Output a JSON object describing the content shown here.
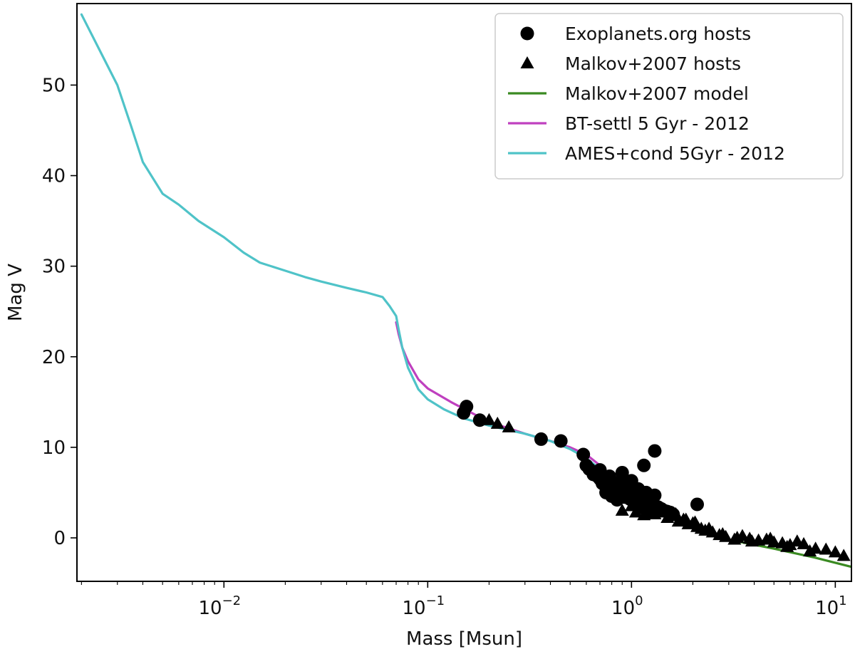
{
  "chart_data": {
    "type": "scatter",
    "title": "",
    "xlabel": "Mass [Msun]",
    "ylabel": "Mag V",
    "xscale": "log",
    "xlim": [
      0.0019,
      12
    ],
    "ylim": [
      -4.8,
      59
    ],
    "grid": false,
    "legend_position": "top-right",
    "x_ticks": [
      {
        "value": 0.01,
        "base": "10",
        "exp": "−2"
      },
      {
        "value": 0.1,
        "base": "10",
        "exp": "−1"
      },
      {
        "value": 1,
        "base": "10",
        "exp": "0"
      },
      {
        "value": 10,
        "base": "10",
        "exp": "1"
      }
    ],
    "y_ticks": [
      0,
      10,
      20,
      30,
      40,
      50
    ],
    "legend": [
      {
        "label": "Exoplanets.org hosts",
        "kind": "circle",
        "color": "#000000"
      },
      {
        "label": "Malkov+2007 hosts",
        "kind": "triangle",
        "color": "#000000"
      },
      {
        "label": "Malkov+2007 model",
        "kind": "line",
        "color": "#3a8a22"
      },
      {
        "label": "BT-settl 5 Gyr - 2012",
        "kind": "line",
        "color": "#bf40bf"
      },
      {
        "label": "AMES+cond 5Gyr - 2012",
        "kind": "line",
        "color": "#4fc3c8"
      }
    ],
    "series": [
      {
        "name": "Exoplanets.org hosts",
        "type": "scatter",
        "marker": "circle",
        "color": "#000000",
        "x": [
          0.15,
          0.155,
          0.18,
          0.36,
          0.45,
          0.58,
          0.6,
          0.62,
          0.65,
          0.68,
          0.7,
          0.72,
          0.75,
          0.78,
          0.8,
          0.82,
          0.85,
          0.88,
          0.9,
          0.92,
          0.95,
          0.98,
          1.0,
          1.02,
          1.05,
          1.08,
          1.1,
          1.12,
          1.15,
          1.18,
          1.2,
          1.25,
          1.28,
          1.3,
          1.35,
          1.4,
          1.45,
          1.5,
          1.55,
          1.6,
          0.75,
          0.8,
          0.85,
          0.9,
          0.95,
          1.0,
          1.05,
          1.1,
          1.15,
          1.2,
          0.7,
          0.78,
          0.88,
          0.98,
          1.08,
          1.18,
          1.3,
          1.15,
          1.3,
          2.1,
          0.9,
          1.0,
          1.2
        ],
        "y": [
          13.8,
          14.5,
          13.0,
          10.9,
          10.7,
          9.2,
          8.0,
          7.6,
          7.0,
          6.8,
          6.5,
          6.0,
          5.8,
          6.2,
          5.5,
          5.0,
          5.3,
          4.8,
          4.9,
          4.5,
          4.6,
          4.3,
          4.4,
          4.0,
          4.2,
          3.8,
          3.9,
          3.6,
          3.7,
          3.5,
          3.4,
          3.3,
          3.5,
          3.0,
          3.4,
          3.2,
          3.0,
          2.9,
          2.8,
          2.6,
          5.0,
          4.6,
          4.2,
          5.6,
          5.4,
          5.8,
          5.2,
          5.0,
          4.8,
          4.6,
          7.5,
          6.8,
          6.2,
          5.9,
          5.4,
          5.0,
          4.7,
          8.0,
          9.6,
          3.7,
          7.2,
          6.3,
          2.8
        ]
      },
      {
        "name": "Malkov+2007 hosts",
        "type": "scatter",
        "marker": "triangle",
        "color": "#000000",
        "x": [
          0.2,
          0.22,
          0.25,
          0.9,
          1.0,
          1.05,
          1.1,
          1.15,
          1.2,
          1.3,
          1.4,
          1.5,
          1.6,
          1.7,
          1.8,
          1.9,
          2.0,
          2.1,
          2.2,
          2.3,
          2.5,
          2.7,
          2.9,
          3.2,
          3.5,
          3.8,
          4.2,
          4.6,
          5.0,
          5.5,
          6.0,
          6.5,
          7.0,
          8.0,
          9.0,
          10.0,
          11.0,
          1.25,
          1.45,
          1.65,
          1.85,
          2.05,
          2.4,
          2.8,
          3.3,
          3.9,
          4.8,
          5.8,
          7.5
        ],
        "y": [
          13.0,
          12.6,
          12.2,
          3.0,
          3.5,
          2.8,
          3.2,
          2.5,
          3.0,
          2.6,
          2.8,
          2.2,
          2.4,
          1.8,
          2.0,
          1.5,
          1.6,
          1.2,
          1.0,
          0.8,
          0.6,
          0.3,
          0.1,
          -0.2,
          0.2,
          -0.1,
          -0.3,
          -0.2,
          -0.5,
          -0.6,
          -0.8,
          -0.4,
          -0.7,
          -1.2,
          -1.3,
          -1.6,
          -2.0,
          3.6,
          3.0,
          2.6,
          2.0,
          1.7,
          1.0,
          0.4,
          0.0,
          -0.4,
          -0.1,
          -1.0,
          -1.5
        ]
      },
      {
        "name": "Malkov+2007 model",
        "type": "line",
        "color": "#3a8a22",
        "x": [
          1.1,
          1.3,
          1.5,
          2.0,
          3.0,
          5.0,
          8.0,
          12.0
        ],
        "y": [
          4.2,
          3.2,
          2.5,
          1.3,
          -0.2,
          -1.2,
          -2.2,
          -3.2
        ]
      },
      {
        "name": "BT-settl 5 Gyr - 2012",
        "type": "line",
        "color": "#bf40bf",
        "x": [
          0.07,
          0.072,
          0.075,
          0.08,
          0.09,
          0.1,
          0.13,
          0.2,
          0.3,
          0.4,
          0.5,
          0.6,
          0.7,
          0.8,
          0.9,
          1.0,
          1.1
        ],
        "y": [
          23.8,
          22.5,
          21.0,
          19.5,
          17.5,
          16.5,
          15.0,
          12.8,
          11.5,
          10.7,
          10.0,
          9.2,
          8.0,
          6.8,
          5.8,
          4.9,
          4.2
        ]
      },
      {
        "name": "AMES+cond 5Gyr - 2012",
        "type": "line",
        "color": "#4fc3c8",
        "x": [
          0.002,
          0.0025,
          0.003,
          0.0035,
          0.004,
          0.005,
          0.006,
          0.0075,
          0.01,
          0.0125,
          0.015,
          0.02,
          0.025,
          0.03,
          0.04,
          0.05,
          0.06,
          0.065,
          0.07,
          0.072,
          0.075,
          0.08,
          0.09,
          0.1,
          0.12,
          0.15,
          0.2,
          0.3,
          0.4,
          0.5,
          0.6,
          0.7,
          0.8,
          0.9,
          1.0,
          1.1,
          1.15
        ],
        "y": [
          57.8,
          53.5,
          50.0,
          45.5,
          41.5,
          38.0,
          36.8,
          35.0,
          33.2,
          31.5,
          30.4,
          29.5,
          28.8,
          28.3,
          27.6,
          27.1,
          26.6,
          25.6,
          24.5,
          23.0,
          21.0,
          18.8,
          16.4,
          15.3,
          14.2,
          13.2,
          12.4,
          11.5,
          10.7,
          9.8,
          8.8,
          7.6,
          6.5,
          5.5,
          4.8,
          4.3,
          4.0
        ]
      }
    ]
  }
}
